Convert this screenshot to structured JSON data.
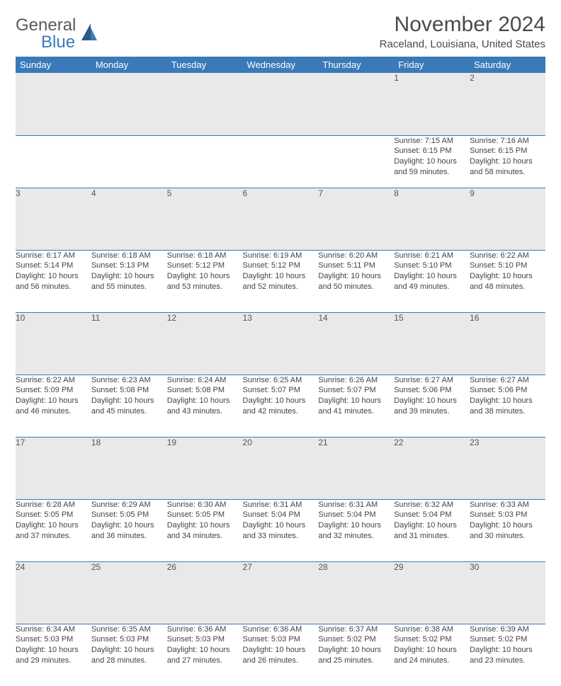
{
  "logo": {
    "general": "General",
    "blue": "Blue"
  },
  "title": "November 2024",
  "location": "Raceland, Louisiana, United States",
  "colors": {
    "header_bg": "#3a7ab8",
    "header_text": "#ffffff",
    "daynum_bg": "#e9e9e9",
    "border": "#3a7ab8",
    "text": "#444444",
    "logo_gray": "#5a5a5a",
    "logo_blue": "#3a7ab8"
  },
  "day_headers": [
    "Sunday",
    "Monday",
    "Tuesday",
    "Wednesday",
    "Thursday",
    "Friday",
    "Saturday"
  ],
  "weeks": [
    [
      {
        "n": "",
        "lines": [
          "",
          "",
          "",
          ""
        ]
      },
      {
        "n": "",
        "lines": [
          "",
          "",
          "",
          ""
        ]
      },
      {
        "n": "",
        "lines": [
          "",
          "",
          "",
          ""
        ]
      },
      {
        "n": "",
        "lines": [
          "",
          "",
          "",
          ""
        ]
      },
      {
        "n": "",
        "lines": [
          "",
          "",
          "",
          ""
        ]
      },
      {
        "n": "1",
        "lines": [
          "Sunrise: 7:15 AM",
          "Sunset: 6:15 PM",
          "Daylight: 10 hours",
          "and 59 minutes."
        ]
      },
      {
        "n": "2",
        "lines": [
          "Sunrise: 7:16 AM",
          "Sunset: 6:15 PM",
          "Daylight: 10 hours",
          "and 58 minutes."
        ]
      }
    ],
    [
      {
        "n": "3",
        "lines": [
          "Sunrise: 6:17 AM",
          "Sunset: 5:14 PM",
          "Daylight: 10 hours",
          "and 56 minutes."
        ]
      },
      {
        "n": "4",
        "lines": [
          "Sunrise: 6:18 AM",
          "Sunset: 5:13 PM",
          "Daylight: 10 hours",
          "and 55 minutes."
        ]
      },
      {
        "n": "5",
        "lines": [
          "Sunrise: 6:18 AM",
          "Sunset: 5:12 PM",
          "Daylight: 10 hours",
          "and 53 minutes."
        ]
      },
      {
        "n": "6",
        "lines": [
          "Sunrise: 6:19 AM",
          "Sunset: 5:12 PM",
          "Daylight: 10 hours",
          "and 52 minutes."
        ]
      },
      {
        "n": "7",
        "lines": [
          "Sunrise: 6:20 AM",
          "Sunset: 5:11 PM",
          "Daylight: 10 hours",
          "and 50 minutes."
        ]
      },
      {
        "n": "8",
        "lines": [
          "Sunrise: 6:21 AM",
          "Sunset: 5:10 PM",
          "Daylight: 10 hours",
          "and 49 minutes."
        ]
      },
      {
        "n": "9",
        "lines": [
          "Sunrise: 6:22 AM",
          "Sunset: 5:10 PM",
          "Daylight: 10 hours",
          "and 48 minutes."
        ]
      }
    ],
    [
      {
        "n": "10",
        "lines": [
          "Sunrise: 6:22 AM",
          "Sunset: 5:09 PM",
          "Daylight: 10 hours",
          "and 46 minutes."
        ]
      },
      {
        "n": "11",
        "lines": [
          "Sunrise: 6:23 AM",
          "Sunset: 5:08 PM",
          "Daylight: 10 hours",
          "and 45 minutes."
        ]
      },
      {
        "n": "12",
        "lines": [
          "Sunrise: 6:24 AM",
          "Sunset: 5:08 PM",
          "Daylight: 10 hours",
          "and 43 minutes."
        ]
      },
      {
        "n": "13",
        "lines": [
          "Sunrise: 6:25 AM",
          "Sunset: 5:07 PM",
          "Daylight: 10 hours",
          "and 42 minutes."
        ]
      },
      {
        "n": "14",
        "lines": [
          "Sunrise: 6:26 AM",
          "Sunset: 5:07 PM",
          "Daylight: 10 hours",
          "and 41 minutes."
        ]
      },
      {
        "n": "15",
        "lines": [
          "Sunrise: 6:27 AM",
          "Sunset: 5:06 PM",
          "Daylight: 10 hours",
          "and 39 minutes."
        ]
      },
      {
        "n": "16",
        "lines": [
          "Sunrise: 6:27 AM",
          "Sunset: 5:06 PM",
          "Daylight: 10 hours",
          "and 38 minutes."
        ]
      }
    ],
    [
      {
        "n": "17",
        "lines": [
          "Sunrise: 6:28 AM",
          "Sunset: 5:05 PM",
          "Daylight: 10 hours",
          "and 37 minutes."
        ]
      },
      {
        "n": "18",
        "lines": [
          "Sunrise: 6:29 AM",
          "Sunset: 5:05 PM",
          "Daylight: 10 hours",
          "and 36 minutes."
        ]
      },
      {
        "n": "19",
        "lines": [
          "Sunrise: 6:30 AM",
          "Sunset: 5:05 PM",
          "Daylight: 10 hours",
          "and 34 minutes."
        ]
      },
      {
        "n": "20",
        "lines": [
          "Sunrise: 6:31 AM",
          "Sunset: 5:04 PM",
          "Daylight: 10 hours",
          "and 33 minutes."
        ]
      },
      {
        "n": "21",
        "lines": [
          "Sunrise: 6:31 AM",
          "Sunset: 5:04 PM",
          "Daylight: 10 hours",
          "and 32 minutes."
        ]
      },
      {
        "n": "22",
        "lines": [
          "Sunrise: 6:32 AM",
          "Sunset: 5:04 PM",
          "Daylight: 10 hours",
          "and 31 minutes."
        ]
      },
      {
        "n": "23",
        "lines": [
          "Sunrise: 6:33 AM",
          "Sunset: 5:03 PM",
          "Daylight: 10 hours",
          "and 30 minutes."
        ]
      }
    ],
    [
      {
        "n": "24",
        "lines": [
          "Sunrise: 6:34 AM",
          "Sunset: 5:03 PM",
          "Daylight: 10 hours",
          "and 29 minutes."
        ]
      },
      {
        "n": "25",
        "lines": [
          "Sunrise: 6:35 AM",
          "Sunset: 5:03 PM",
          "Daylight: 10 hours",
          "and 28 minutes."
        ]
      },
      {
        "n": "26",
        "lines": [
          "Sunrise: 6:36 AM",
          "Sunset: 5:03 PM",
          "Daylight: 10 hours",
          "and 27 minutes."
        ]
      },
      {
        "n": "27",
        "lines": [
          "Sunrise: 6:36 AM",
          "Sunset: 5:03 PM",
          "Daylight: 10 hours",
          "and 26 minutes."
        ]
      },
      {
        "n": "28",
        "lines": [
          "Sunrise: 6:37 AM",
          "Sunset: 5:02 PM",
          "Daylight: 10 hours",
          "and 25 minutes."
        ]
      },
      {
        "n": "29",
        "lines": [
          "Sunrise: 6:38 AM",
          "Sunset: 5:02 PM",
          "Daylight: 10 hours",
          "and 24 minutes."
        ]
      },
      {
        "n": "30",
        "lines": [
          "Sunrise: 6:39 AM",
          "Sunset: 5:02 PM",
          "Daylight: 10 hours",
          "and 23 minutes."
        ]
      }
    ]
  ]
}
